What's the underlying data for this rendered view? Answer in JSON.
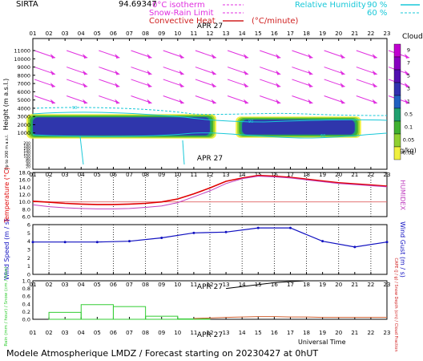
{
  "header": {
    "station": "SIRTA",
    "coord": "94.69347",
    "legend": [
      {
        "label": "0°C isotherm",
        "color": "#e030e0",
        "style": "dashed"
      },
      {
        "label": "Snow-Rain Limit",
        "color": "#e030e0",
        "style": "dashed"
      },
      {
        "label": "Convective Heat",
        "color": "#d02020",
        "style": "solid"
      },
      {
        "label": "(°C/minute)",
        "color": "#d02020",
        "style": "none"
      }
    ],
    "humidity": {
      "label": "Relative Humidity",
      "v1": "90 %",
      "v2": "60 %",
      "color": "#18c8d8"
    }
  },
  "colors": {
    "wind_arrow": "#e030e0",
    "humidity": "#18c8d8",
    "temperature": "#e00000",
    "humidex": "#c040c0",
    "wind_speed": "#1010c0",
    "wind_gust": "#1010c0",
    "gridline": "#bbbbbb",
    "rain": "#33cc33",
    "capc": "#000000",
    "snow": "#d06030"
  },
  "time_ticks": [
    "01",
    "02",
    "03",
    "04",
    "05",
    "06",
    "07",
    "08",
    "09",
    "10",
    "11",
    "12",
    "13",
    "14",
    "15",
    "16",
    "17",
    "18",
    "19",
    "20",
    "21",
    "22",
    "23"
  ],
  "date_label": "APR 27",
  "clouds_scale": {
    "title": "Clouds",
    "unit": "(g/kg)",
    "labels": [
      "9",
      "7",
      "5",
      "3",
      "1",
      "0.5",
      "0.1",
      "0.05",
      "0.01"
    ],
    "colors": [
      "#c000d0",
      "#8800c0",
      "#5010b0",
      "#3030b0",
      "#2060c0",
      "#20a070",
      "#40b030",
      "#90d030",
      "#f0f040"
    ]
  },
  "chart_data": [
    {
      "type": "heatmap",
      "ylabel": "Height (m a.s.l.)",
      "y_ticks": [
        "1000",
        "2000",
        "3000",
        "4000",
        "5000",
        "6000",
        "7000",
        "8000",
        "9000",
        "10000",
        "11000"
      ],
      "y_lower_label": "Up to 200 m a.s.l.",
      "y_lower_ticks": [
        "200",
        "180",
        "160",
        "140",
        "120",
        "100",
        "80",
        "60",
        "40",
        "20"
      ],
      "humidity_labels": [
        "90",
        "60"
      ],
      "cloud_layers": [
        {
          "hours": [
            1,
            12
          ],
          "bottom_m": 700,
          "top_m": 2900,
          "class": "3"
        },
        {
          "hours": [
            14,
            21
          ],
          "bottom_m": 800,
          "top_m": 2600,
          "class": "3"
        }
      ],
      "wind_arrows": {
        "levels_m": [
          11000,
          9000,
          7500,
          5500
        ],
        "hours": [
          1,
          3,
          5,
          7,
          9,
          11,
          13,
          15,
          17,
          19,
          21,
          23
        ]
      }
    },
    {
      "type": "line",
      "ylabel": "Temperature (°C)",
      "y2label": "HUMIDEX",
      "ylim": [
        6,
        18
      ],
      "y_ticks": [
        "6.0",
        "8.0",
        "10.0",
        "12.0",
        "14.0",
        "16.0",
        "18.0"
      ],
      "x": [
        1,
        2,
        3,
        4,
        5,
        6,
        7,
        8,
        9,
        10,
        11,
        12,
        13,
        14,
        15,
        16,
        17,
        18,
        19,
        20,
        21,
        22,
        23
      ],
      "series": [
        {
          "values": [
            10.2,
            9.9,
            9.6,
            9.4,
            9.3,
            9.3,
            9.4,
            9.6,
            10.0,
            10.8,
            12.2,
            13.8,
            15.6,
            16.5,
            17.2,
            17.0,
            16.7,
            16.2,
            15.7,
            15.2,
            14.9,
            14.6,
            14.3
          ]
        },
        {
          "values": [
            9.2,
            8.7,
            8.4,
            8.2,
            8.1,
            8.1,
            8.2,
            8.5,
            8.9,
            9.8,
            11.4,
            13.0,
            15.0,
            16.3,
            17.0,
            16.8,
            16.5,
            16.0,
            15.5,
            15.0,
            14.7,
            14.4,
            14.1
          ]
        }
      ]
    },
    {
      "type": "line",
      "ylabel": "Wind Speed (m / s)",
      "y2label": "Wind Gust (m / s)",
      "ylim": [
        0,
        6
      ],
      "y_ticks": [
        "0",
        "1",
        "2",
        "3",
        "4",
        "5",
        "6"
      ],
      "x": [
        1,
        3,
        5,
        7,
        9,
        11,
        13,
        15,
        17,
        19,
        21,
        23
      ],
      "series": [
        {
          "values": [
            3.9,
            3.9,
            3.9,
            4.0,
            4.4,
            5.0,
            5.1,
            5.6,
            5.6,
            4.0,
            3.3,
            3.9
          ]
        }
      ]
    },
    {
      "type": "bar",
      "ylabel": "Rain (mm / hour) / Snow (cm / hour)",
      "y2label": "CAPE (J / g) / Snow Depth (cm) / Cloud Fraction",
      "ylim": [
        0,
        1.0
      ],
      "y_ticks": [
        "0.0",
        "0.2",
        "0.4",
        "0.6",
        "0.8",
        "1.0"
      ],
      "rain": {
        "starts": [
          2,
          4,
          6,
          8,
          10
        ],
        "ends": [
          4,
          6,
          8,
          10,
          12
        ],
        "values": [
          0.18,
          0.38,
          0.33,
          0.08,
          0.01
        ]
      },
      "capc": {
        "x": [
          13,
          14,
          15,
          16,
          17,
          18
        ],
        "values": [
          0.8,
          0.85,
          0.9,
          0.95,
          0.98,
          1.0
        ]
      },
      "snow": {
        "x": [
          11,
          13,
          14,
          15,
          16,
          17,
          18,
          19,
          20,
          21,
          22,
          23
        ],
        "values": [
          0.02,
          0.05,
          0.06,
          0.07,
          0.07,
          0.06,
          0.06,
          0.05,
          0.05,
          0.05,
          0.05,
          0.05
        ]
      },
      "xlabel": "Universal Time"
    }
  ],
  "footer": {
    "title": "Modele Atmospherique LMDZ / Forecast starting on 20230427 at 0hUT"
  }
}
